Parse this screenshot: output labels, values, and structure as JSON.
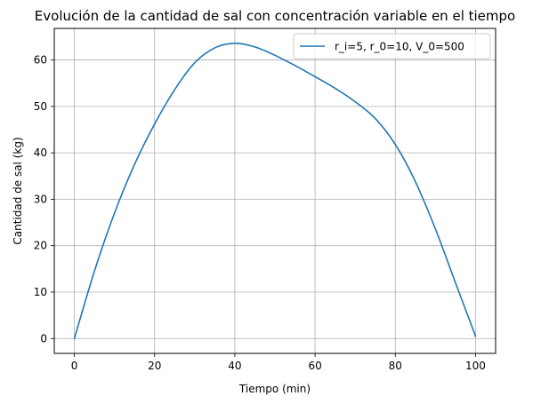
{
  "chart_data": {
    "type": "line",
    "title": "Evolución de la cantidad de sal con concentración variable en el tiempo",
    "xlabel": "Tiempo (min)",
    "ylabel": "Cantidad de sal (kg)",
    "xlim": [
      -5,
      105
    ],
    "ylim": [
      -3.2,
      66.8
    ],
    "xticks": [
      0,
      20,
      40,
      60,
      80,
      100
    ],
    "yticks": [
      0,
      10,
      20,
      30,
      40,
      50,
      60
    ],
    "grid": true,
    "legend_position": "top-right",
    "series": [
      {
        "name": "r_i=5, r_0=10, V_0=500",
        "color": "#1f77b4",
        "x": [
          0,
          5,
          10,
          15,
          20,
          25,
          30,
          35,
          40,
          45,
          50,
          55,
          60,
          65,
          70,
          75,
          80,
          85,
          90,
          95,
          100
        ],
        "y": [
          0,
          14.5,
          27.0,
          37.5,
          46.2,
          53.6,
          59.4,
          62.6,
          63.6,
          62.8,
          61.0,
          58.8,
          56.4,
          53.9,
          51.0,
          47.4,
          41.8,
          33.8,
          23.6,
          12.0,
          0.5
        ]
      }
    ]
  }
}
